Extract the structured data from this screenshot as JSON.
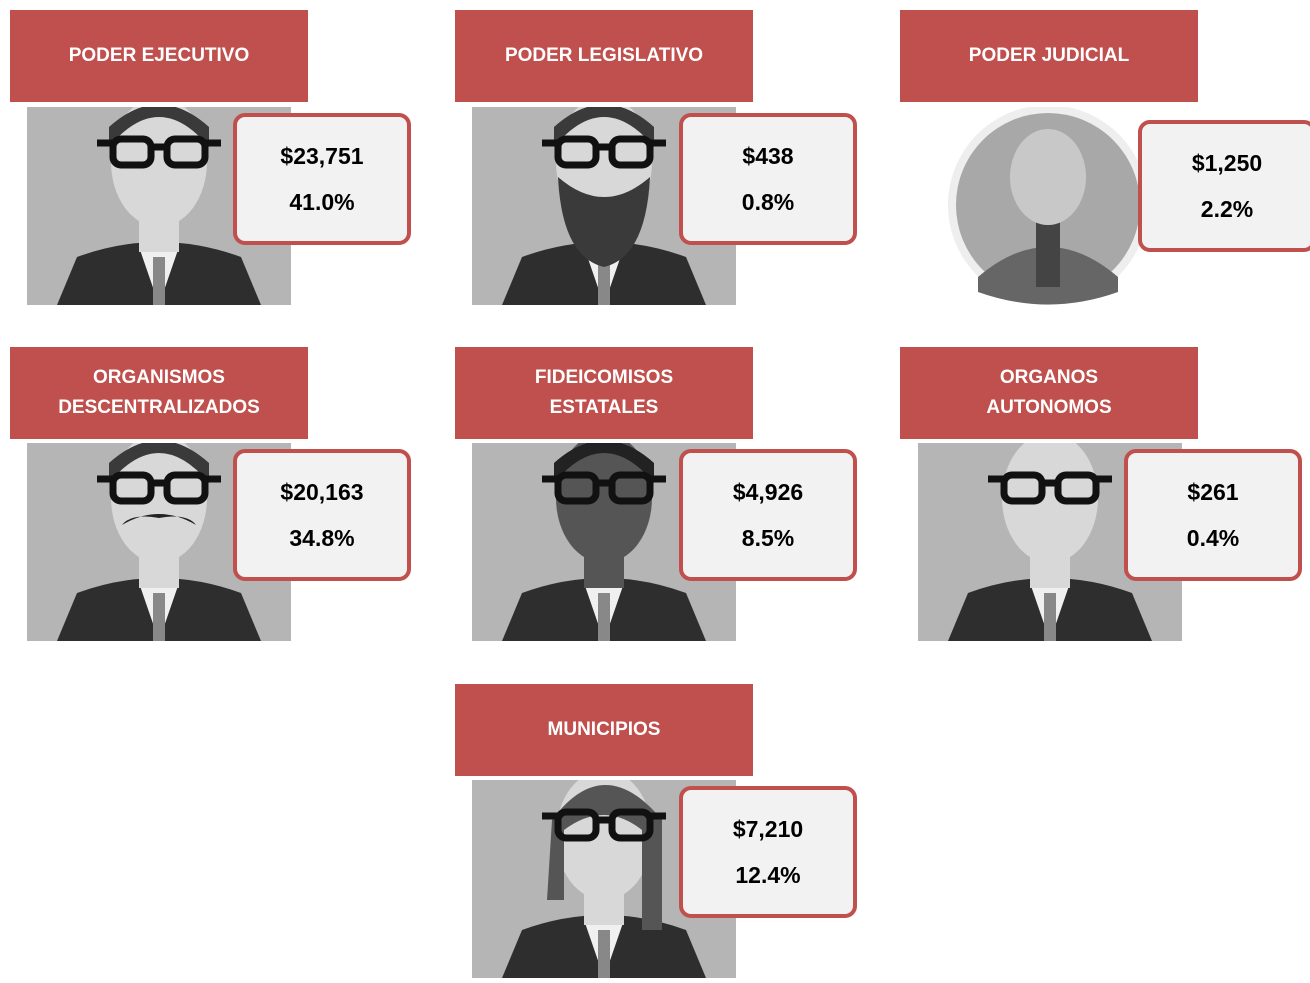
{
  "cards": [
    {
      "title": [
        "PODER EJECUTIVO"
      ],
      "amount": "$23,751",
      "share": "41.0%"
    },
    {
      "title": [
        "PODER LEGISLATIVO"
      ],
      "amount": "$438",
      "share": "0.8%"
    },
    {
      "title": [
        "PODER JUDICIAL"
      ],
      "amount": "$1,250",
      "share": "2.2%"
    },
    {
      "title": [
        "ORGANISMOS",
        "DESCENTRALIZADOS"
      ],
      "amount": "$20,163",
      "share": "34.8%"
    },
    {
      "title": [
        "FIDEICOMISOS",
        "ESTATALES"
      ],
      "amount": "$4,926",
      "share": "8.5%"
    },
    {
      "title": [
        "ORGANOS",
        "AUTONOMOS"
      ],
      "amount": "$261",
      "share": "0.4%"
    },
    {
      "title": [
        "MUNICIPIOS"
      ],
      "amount": "$7,210",
      "share": "12.4%"
    }
  ]
}
